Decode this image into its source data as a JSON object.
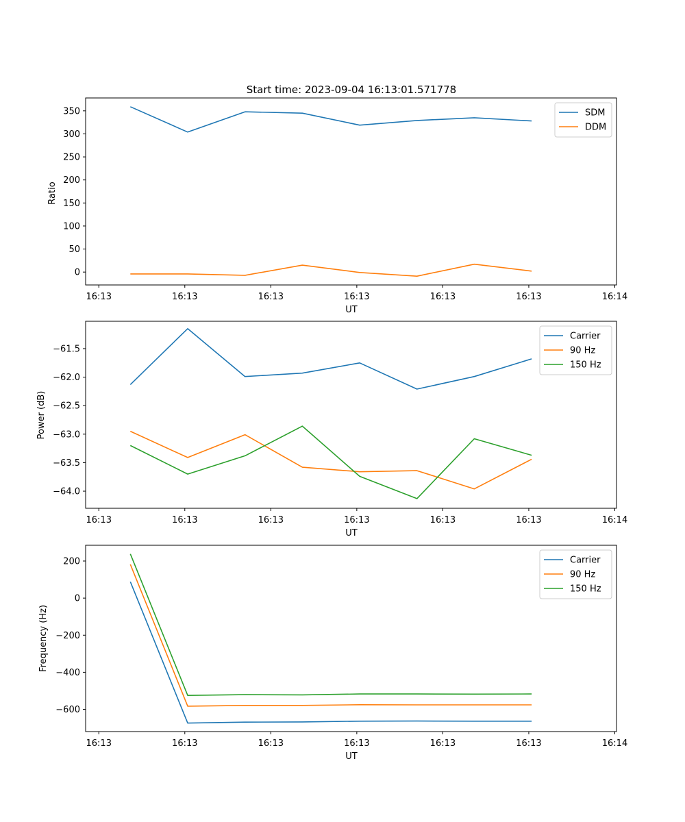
{
  "chart_data": [
    {
      "type": "line",
      "title": "Start time: 2023-09-04 16:13:01.571778",
      "xlabel": "UT",
      "ylabel": "Ratio",
      "x": [
        1,
        2,
        3,
        4,
        5,
        6,
        7,
        8
      ],
      "xlim": [
        0.22,
        9.48
      ],
      "xticks": [
        0.45,
        1.95,
        3.45,
        4.95,
        6.45,
        7.95,
        9.45
      ],
      "xtick_labels": [
        "16:13",
        "16:13",
        "16:13",
        "16:13",
        "16:13",
        "16:13",
        "16:14"
      ],
      "ylim": [
        -28,
        378
      ],
      "yticks": [
        0,
        50,
        100,
        150,
        200,
        250,
        300,
        350
      ],
      "legend": "top-right",
      "series": [
        {
          "name": "SDM",
          "color": "#1f77b4",
          "values": [
            359,
            304,
            348,
            345,
            319,
            329,
            335,
            328
          ]
        },
        {
          "name": "DDM",
          "color": "#ff7f0e",
          "values": [
            -4,
            -4,
            -7,
            15,
            -1,
            -9,
            17,
            2
          ]
        }
      ]
    },
    {
      "type": "line",
      "title": "",
      "xlabel": "UT",
      "ylabel": "Power (dB)",
      "x": [
        1,
        2,
        3,
        4,
        5,
        6,
        7,
        8
      ],
      "xlim": [
        0.22,
        9.48
      ],
      "xticks": [
        0.45,
        1.95,
        3.45,
        4.95,
        6.45,
        7.95,
        9.45
      ],
      "xtick_labels": [
        "16:13",
        "16:13",
        "16:13",
        "16:13",
        "16:13",
        "16:13",
        "16:14"
      ],
      "ylim": [
        -64.3,
        -61.02
      ],
      "yticks": [
        -64.0,
        -63.5,
        -63.0,
        -62.5,
        -62.0,
        -61.5
      ],
      "ytick_labels": [
        "−64.0",
        "−63.5",
        "−63.0",
        "−62.5",
        "−62.0",
        "−61.5"
      ],
      "legend": "top-right",
      "series": [
        {
          "name": "Carrier",
          "color": "#1f77b4",
          "values": [
            -62.13,
            -61.15,
            -61.99,
            -61.93,
            -61.75,
            -62.21,
            -61.99,
            -61.68
          ]
        },
        {
          "name": "90 Hz",
          "color": "#ff7f0e",
          "values": [
            -62.95,
            -63.41,
            -63.01,
            -63.58,
            -63.66,
            -63.64,
            -63.96,
            -63.44
          ]
        },
        {
          "name": "150 Hz",
          "color": "#2ca02c",
          "values": [
            -63.2,
            -63.7,
            -63.38,
            -62.86,
            -63.74,
            -64.13,
            -63.08,
            -63.37
          ]
        }
      ]
    },
    {
      "type": "line",
      "title": "",
      "xlabel": "UT",
      "ylabel": "Frequency (Hz)",
      "x": [
        1,
        2,
        3,
        4,
        5,
        6,
        7,
        8
      ],
      "xlim": [
        0.22,
        9.48
      ],
      "xticks": [
        0.45,
        1.95,
        3.45,
        4.95,
        6.45,
        7.95,
        9.45
      ],
      "xtick_labels": [
        "16:13",
        "16:13",
        "16:13",
        "16:13",
        "16:13",
        "16:13",
        "16:14"
      ],
      "ylim": [
        -720,
        285
      ],
      "yticks": [
        -600,
        -400,
        -200,
        0,
        200
      ],
      "ytick_labels": [
        "−600",
        "−400",
        "−200",
        "0",
        "200"
      ],
      "legend": "top-right",
      "series": [
        {
          "name": "Carrier",
          "color": "#1f77b4",
          "values": [
            88,
            -674,
            -669,
            -668,
            -664,
            -663,
            -664,
            -664
          ]
        },
        {
          "name": "90 Hz",
          "color": "#ff7f0e",
          "values": [
            182,
            -583,
            -579,
            -579,
            -575,
            -576,
            -576,
            -576
          ]
        },
        {
          "name": "150 Hz",
          "color": "#2ca02c",
          "values": [
            238,
            -525,
            -521,
            -522,
            -517,
            -517,
            -518,
            -517
          ]
        }
      ]
    }
  ]
}
